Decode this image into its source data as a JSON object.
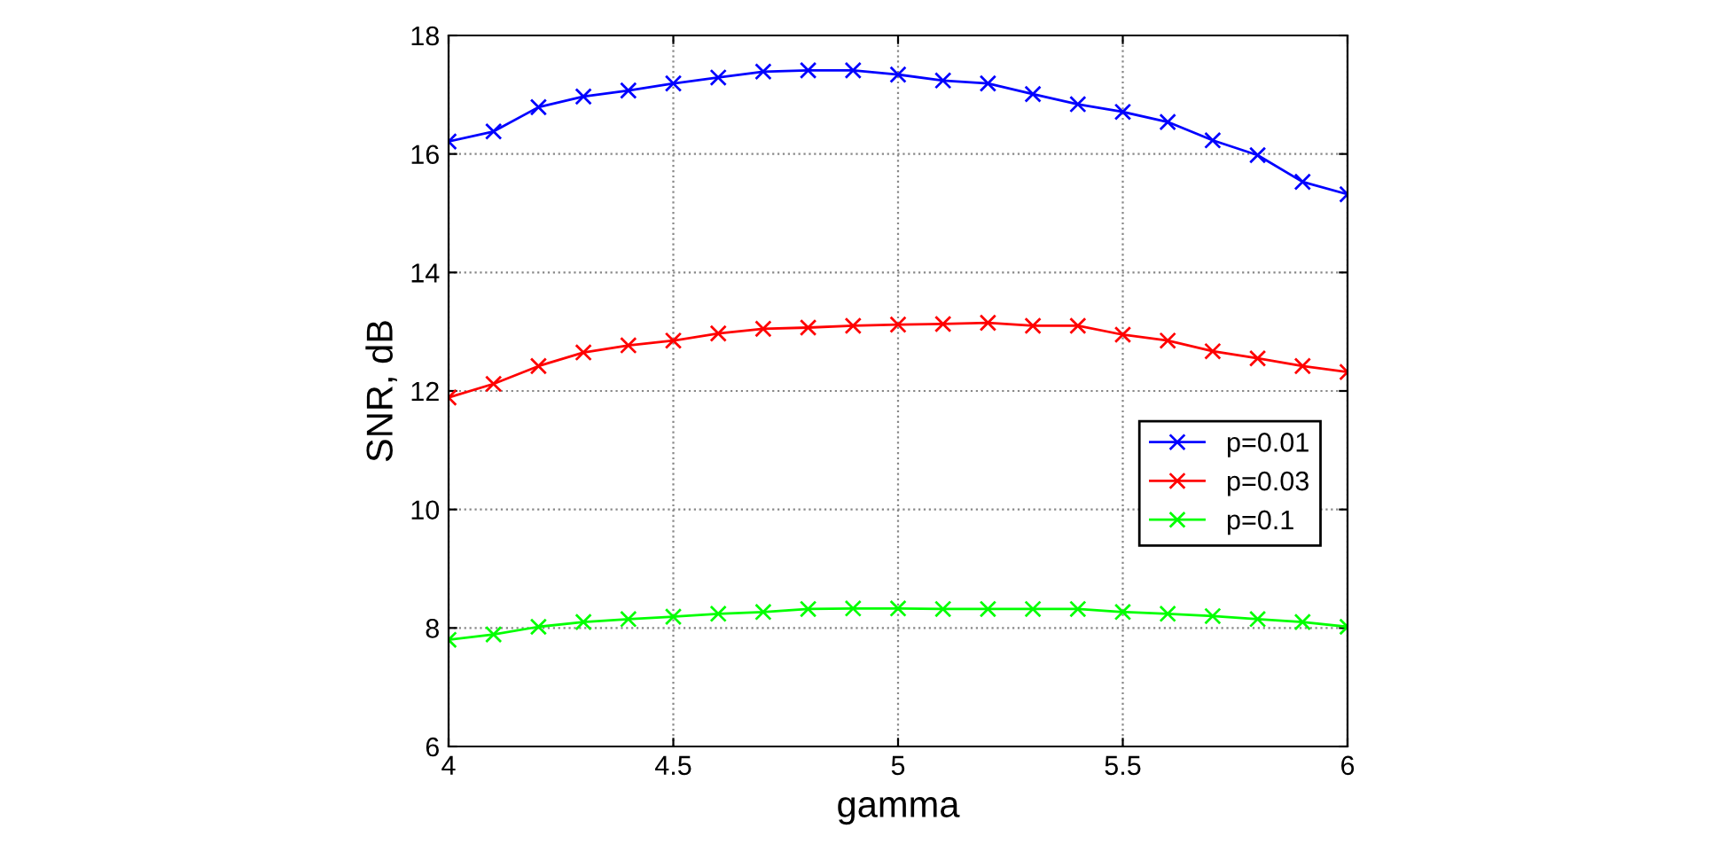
{
  "chart_data": {
    "type": "line",
    "xlabel": "gamma",
    "ylabel": "SNR, dB",
    "x": [
      4.0,
      4.1,
      4.2,
      4.3,
      4.4,
      4.5,
      4.6,
      4.7,
      4.8,
      4.9,
      5.0,
      5.1,
      5.2,
      5.3,
      5.4,
      5.5,
      5.6,
      5.7,
      5.8,
      5.9,
      6.0
    ],
    "series": [
      {
        "name": "p=0.01",
        "color": "#0000ff",
        "values": [
          16.21,
          16.38,
          16.79,
          16.97,
          17.07,
          17.19,
          17.29,
          17.39,
          17.41,
          17.41,
          17.34,
          17.24,
          17.19,
          17.01,
          16.84,
          16.71,
          16.54,
          16.23,
          15.98,
          15.53,
          15.32
        ]
      },
      {
        "name": "p=0.03",
        "color": "#ff0000",
        "values": [
          11.89,
          12.12,
          12.42,
          12.65,
          12.77,
          12.85,
          12.97,
          13.05,
          13.07,
          13.1,
          13.12,
          13.13,
          13.15,
          13.1,
          13.1,
          12.95,
          12.85,
          12.67,
          12.55,
          12.42,
          12.32
        ]
      },
      {
        "name": "p=0.1",
        "color": "#00ff00",
        "values": [
          7.8,
          7.89,
          8.02,
          8.1,
          8.15,
          8.19,
          8.24,
          8.27,
          8.32,
          8.33,
          8.33,
          8.32,
          8.32,
          8.32,
          8.32,
          8.27,
          8.24,
          8.2,
          8.15,
          8.1,
          8.02
        ]
      }
    ],
    "xlim": [
      4,
      6
    ],
    "xticks": [
      4,
      4.5,
      5,
      5.5,
      6
    ],
    "ylim": [
      6,
      18
    ],
    "yticks": [
      6,
      8,
      10,
      12,
      14,
      16,
      18
    ],
    "grid": true,
    "legend": "right",
    "marker": "cross",
    "line_style": "solid"
  }
}
